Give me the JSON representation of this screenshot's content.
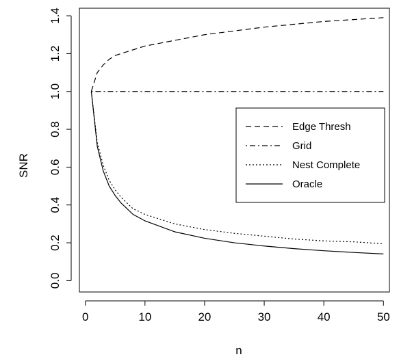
{
  "chart_data": {
    "type": "line",
    "title": "",
    "xlabel": "n",
    "ylabel": "SNR",
    "xlim": [
      -1,
      51
    ],
    "ylim": [
      -0.06,
      1.44
    ],
    "xticks": [
      0,
      10,
      20,
      30,
      40,
      50
    ],
    "xtick_labels": [
      "0",
      "10",
      "20",
      "30",
      "40",
      "50"
    ],
    "yticks": [
      0.0,
      0.2,
      0.4,
      0.6,
      0.8,
      1.0,
      1.2,
      1.4
    ],
    "ytick_labels": [
      "0.0",
      "0.2",
      "0.4",
      "0.6",
      "0.8",
      "1.0",
      "1.2",
      "1.4"
    ],
    "grid": false,
    "legend_position": "center-right",
    "series": [
      {
        "name": "Edge Thresh",
        "line_style": "dashed",
        "x": [
          1,
          2,
          3,
          4,
          5,
          6,
          8,
          10,
          15,
          20,
          25,
          30,
          35,
          40,
          45,
          50
        ],
        "values": [
          1.0,
          1.1,
          1.14,
          1.17,
          1.19,
          1.2,
          1.22,
          1.24,
          1.27,
          1.3,
          1.32,
          1.34,
          1.355,
          1.37,
          1.38,
          1.39
        ]
      },
      {
        "name": "Grid",
        "line_style": "dotdash",
        "x": [
          1,
          50
        ],
        "values": [
          1.0,
          1.0
        ]
      },
      {
        "name": "Nest Complete",
        "line_style": "dotted",
        "x": [
          1,
          2,
          3,
          4,
          5,
          6,
          8,
          10,
          15,
          20,
          25,
          30,
          35,
          40,
          45,
          50
        ],
        "values": [
          1.0,
          0.73,
          0.61,
          0.53,
          0.48,
          0.44,
          0.38,
          0.35,
          0.3,
          0.27,
          0.25,
          0.235,
          0.22,
          0.21,
          0.205,
          0.195
        ]
      },
      {
        "name": "Oracle",
        "line_style": "solid",
        "x": [
          1,
          2,
          3,
          4,
          5,
          6,
          8,
          10,
          15,
          20,
          25,
          30,
          35,
          40,
          45,
          50
        ],
        "values": [
          1.0,
          0.71,
          0.58,
          0.5,
          0.45,
          0.41,
          0.35,
          0.316,
          0.258,
          0.224,
          0.2,
          0.183,
          0.169,
          0.158,
          0.149,
          0.141
        ]
      }
    ]
  }
}
